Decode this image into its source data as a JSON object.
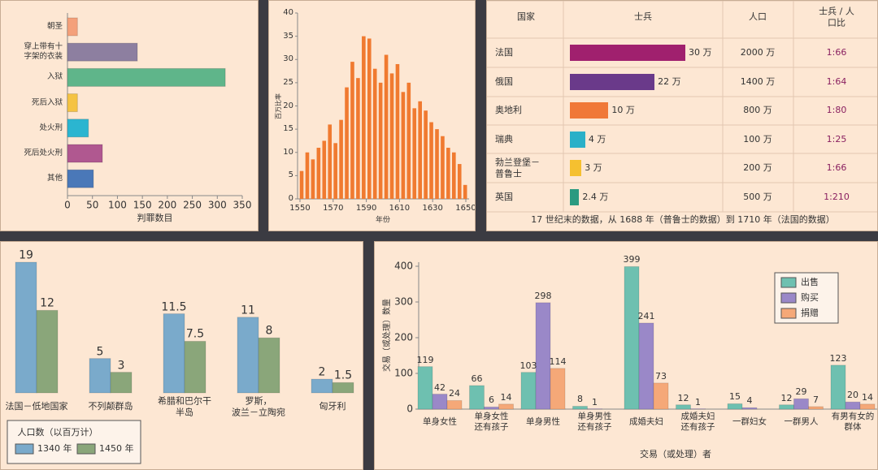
{
  "chart_data": [
    {
      "type": "hbar",
      "xlabel": "判罪数目",
      "categories": [
        "朝圣",
        "穿上带有十\n字架的衣装",
        "入狱",
        "死后入狱",
        "处火刑",
        "死后处火刑",
        "其他"
      ],
      "values": [
        20,
        140,
        316,
        20,
        42,
        70,
        52
      ],
      "colors": [
        "#f4a07a",
        "#8d7fa0",
        "#5fb58a",
        "#f5c342",
        "#2bb5d0",
        "#b05890",
        "#4a78b8"
      ],
      "xlim": [
        0,
        350
      ],
      "xticks": [
        0,
        50,
        100,
        150,
        200,
        250,
        300,
        350
      ]
    },
    {
      "type": "bar",
      "ylabel": "百万比率",
      "xlabel": "年份",
      "x": [
        1551.0,
        1554.4,
        1557.8,
        1561.2,
        1564.6,
        1568.0,
        1571.4,
        1574.8,
        1578.2,
        1581.6,
        1585.0,
        1588.4,
        1591.8,
        1595.2,
        1598.6,
        1602.0,
        1605.4,
        1608.8,
        1612.2,
        1615.6,
        1619.0,
        1622.4,
        1625.8,
        1629.2,
        1632.6,
        1636.0,
        1639.4,
        1642.8,
        1646.2,
        1649.6
      ],
      "values": [
        6,
        10,
        8.5,
        11,
        12.5,
        16,
        12,
        17,
        24,
        29.5,
        26,
        35,
        34.5,
        28,
        25,
        31,
        27,
        29,
        23,
        25,
        19.5,
        21,
        19,
        16.5,
        15,
        13.5,
        11,
        10,
        7.5,
        3
      ],
      "color": "#f07a30",
      "xlim": [
        1550,
        1650
      ],
      "xticks": [
        1550,
        1570,
        1590,
        1610,
        1630,
        1650
      ],
      "ylim": [
        0,
        40
      ],
      "yticks": [
        0,
        5,
        10,
        15,
        20,
        25,
        30,
        35,
        40
      ]
    },
    {
      "type": "table",
      "columns": [
        "国家",
        "士兵",
        "人口",
        "士兵 / 人口比"
      ],
      "countries": [
        "法国",
        "俄国",
        "奥地利",
        "瑞典",
        "勃兰登堡－\n普鲁士",
        "英国"
      ],
      "soldiers": {
        "values": [
          30,
          22,
          10,
          4,
          3,
          2.4
        ],
        "value_labels": [
          "30 万",
          "22 万",
          "10 万",
          "4 万",
          "3 万",
          "2.4 万"
        ]
      },
      "colors": [
        "#a0206e",
        "#6a3a8a",
        "#f07838",
        "#2ab0c8",
        "#f5c030",
        "#2a9a80"
      ],
      "population": [
        "2000 万",
        "1400 万",
        "800 万",
        "100 万",
        "200 万",
        "500 万"
      ],
      "ratio": [
        "1:66",
        "1:64",
        "1:80",
        "1:25",
        "1:66",
        "1:210"
      ],
      "note": "17 世纪末的数据，从 1688 年（普鲁士的数据）到 1710 年（法国的数据）"
    },
    {
      "type": "grouped-bar",
      "legend_title": "人口数（以百万计）",
      "categories": [
        "法国－低地国家",
        "不列颠群岛",
        "希腊和巴尔干\n半岛",
        "罗斯，\n波兰－立陶宛",
        "匈牙利"
      ],
      "series": [
        {
          "name": "1340 年",
          "color": "#7aaacb",
          "values": [
            19,
            5,
            11.5,
            11,
            2
          ]
        },
        {
          "name": "1450 年",
          "color": "#8aa67a",
          "values": [
            12,
            3,
            7.5,
            8,
            1.5
          ]
        }
      ]
    },
    {
      "type": "grouped-bar",
      "ylabel": "交易（或处理）数量",
      "xlabel": "交易（或处理）者",
      "categories": [
        "单身女性",
        "单身女性\n还有孩子",
        "单身男性",
        "单身男性\n还有孩子",
        "成婚夫妇",
        "成婚夫妇\n还有孩子",
        "一群妇女",
        "一群男人",
        "有男有女的\n群体"
      ],
      "series": [
        {
          "name": "出售",
          "color": "#6ec0b0",
          "values": [
            119,
            66,
            103,
            8,
            399,
            12,
            15,
            12,
            123
          ]
        },
        {
          "name": "购买",
          "color": "#9a88c8",
          "values": [
            42,
            6,
            298,
            1,
            241,
            1,
            4,
            29,
            20
          ]
        },
        {
          "name": "捐赠",
          "color": "#f5a878",
          "values": [
            24,
            14,
            114,
            null,
            73,
            null,
            null,
            7,
            14
          ]
        }
      ],
      "ylim": [
        0,
        400
      ],
      "yticks": [
        0,
        100,
        200,
        300,
        400
      ]
    }
  ]
}
